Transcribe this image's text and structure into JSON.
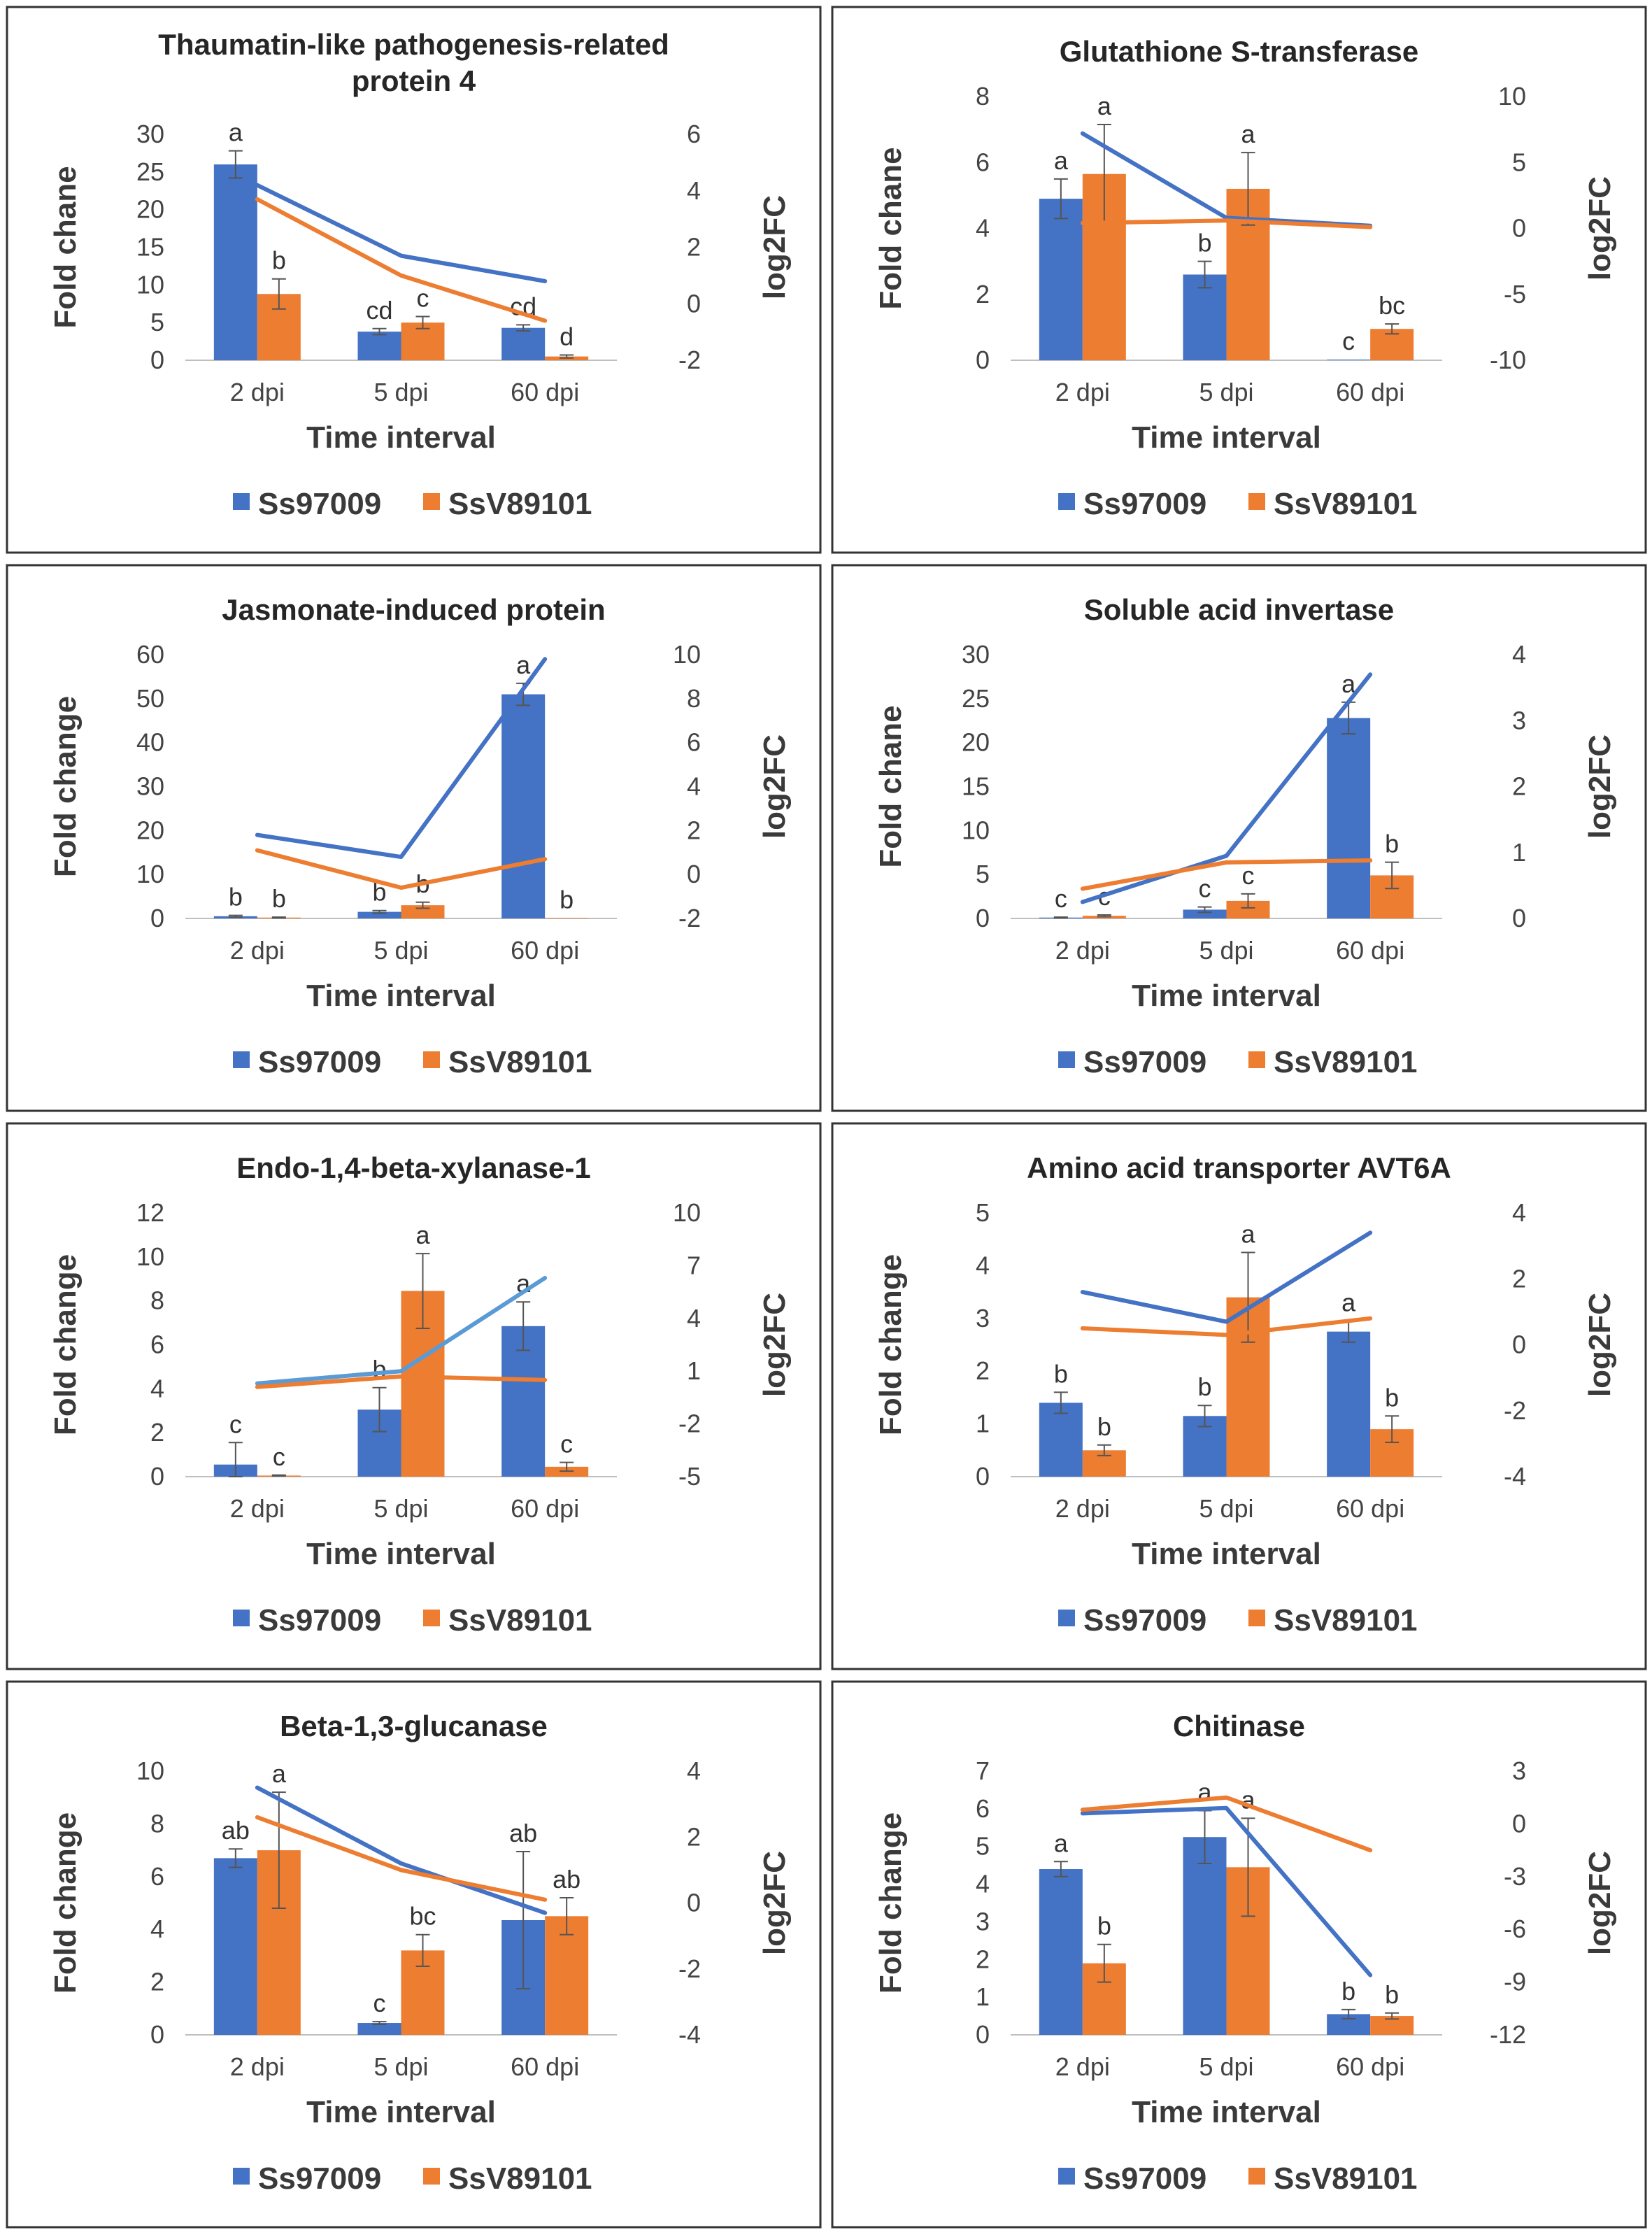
{
  "legend": [
    "Ss97009",
    "SsV89101"
  ],
  "colors": {
    "ss97009": "#4472C4",
    "ssv89101": "#ED7D31",
    "ss97009_line_alt": "#5B9BD5",
    "error_bar": "#555555",
    "axis": "#bfbfbf",
    "frame": "#333333"
  },
  "x_label": "Time interval",
  "y2_label": "log2FC",
  "chart_data": [
    {
      "type": "bar+line",
      "title": "Thaumatin-like pathogenesis-related protein 4",
      "title_lines": [
        "Thaumatin-like pathogenesis-related",
        "protein 4"
      ],
      "ylabel": "Fold chane",
      "y2label": "log2FC",
      "xlabel": "Time interval",
      "categories": [
        "2 dpi",
        "5 dpi",
        "60 dpi"
      ],
      "ylim": [
        0,
        30
      ],
      "yticks": [
        0,
        5,
        10,
        15,
        20,
        25,
        30
      ],
      "y2lim": [
        -2,
        6
      ],
      "y2ticks": [
        -2,
        0,
        2,
        4,
        6
      ],
      "bars": [
        {
          "name": "Ss97009",
          "values": [
            26,
            3.8,
            4.3
          ],
          "errors": [
            1.8,
            0.4,
            0.4
          ],
          "sig": [
            "a",
            "cd",
            "cd"
          ]
        },
        {
          "name": "SsV89101",
          "values": [
            8.8,
            5.0,
            0.5
          ],
          "errors": [
            2.0,
            0.8,
            0.2
          ],
          "sig": [
            "b",
            "c",
            "d"
          ]
        }
      ],
      "lines": [
        {
          "name": "Ss97009",
          "values": [
            4.2,
            1.7,
            0.8
          ]
        },
        {
          "name": "SsV89101",
          "values": [
            3.7,
            1.0,
            -0.6
          ]
        }
      ]
    },
    {
      "type": "bar+line",
      "title": "Glutathione S-transferase",
      "title_lines": [
        "Glutathione S-transferase"
      ],
      "ylabel": "Fold chane",
      "y2label": "log2FC",
      "xlabel": "Time interval",
      "categories": [
        "2 dpi",
        "5 dpi",
        "60 dpi"
      ],
      "ylim": [
        0,
        8
      ],
      "yticks": [
        0,
        2,
        4,
        6,
        8
      ],
      "y2lim": [
        -10,
        10
      ],
      "y2ticks": [
        -10,
        -5,
        0,
        5,
        10
      ],
      "bars": [
        {
          "name": "Ss97009",
          "values": [
            4.9,
            2.6,
            0.02
          ],
          "errors": [
            0.6,
            0.4,
            0.0
          ],
          "sig": [
            "a",
            "b",
            "c"
          ]
        },
        {
          "name": "SsV89101",
          "values": [
            5.65,
            5.2,
            0.95
          ],
          "errors": [
            1.5,
            1.1,
            0.15
          ],
          "sig": [
            "a",
            "a",
            "bc"
          ]
        }
      ],
      "lines": [
        {
          "name": "Ss97009",
          "values": [
            7.2,
            0.8,
            0.2
          ]
        },
        {
          "name": "SsV89101",
          "values": [
            0.4,
            0.6,
            0.1
          ]
        }
      ]
    },
    {
      "type": "bar+line",
      "title": "Jasmonate-induced protein",
      "title_lines": [
        "Jasmonate-induced protein"
      ],
      "ylabel": "Fold change",
      "y2label": "log2FC",
      "xlabel": "Time interval",
      "categories": [
        "2 dpi",
        "5 dpi",
        "60 dpi"
      ],
      "ylim": [
        0,
        60
      ],
      "yticks": [
        0,
        10,
        20,
        30,
        40,
        50,
        60
      ],
      "y2lim": [
        -2,
        10
      ],
      "y2ticks": [
        -2,
        0,
        2,
        4,
        6,
        8,
        10
      ],
      "bars": [
        {
          "name": "Ss97009",
          "values": [
            0.5,
            1.5,
            51
          ],
          "errors": [
            0.2,
            0.3,
            2.5
          ],
          "sig": [
            "b",
            "b",
            "a"
          ]
        },
        {
          "name": "SsV89101",
          "values": [
            0.2,
            3.0,
            0.1
          ],
          "errors": [
            0.1,
            0.7,
            0.0
          ],
          "sig": [
            "b",
            "b",
            "b"
          ]
        }
      ],
      "lines": [
        {
          "name": "Ss97009",
          "values": [
            1.8,
            0.8,
            9.8
          ]
        },
        {
          "name": "SsV89101",
          "values": [
            1.1,
            -0.6,
            0.7
          ]
        }
      ]
    },
    {
      "type": "bar+line",
      "title": "Soluble acid invertase",
      "title_lines": [
        "Soluble acid invertase"
      ],
      "ylabel": "Fold chane",
      "y2label": "log2FC",
      "xlabel": "Time interval",
      "categories": [
        "2 dpi",
        "5 dpi",
        "60 dpi"
      ],
      "ylim": [
        0,
        30
      ],
      "yticks": [
        0,
        5,
        10,
        15,
        20,
        25,
        30
      ],
      "y2lim": [
        0,
        4
      ],
      "y2ticks": [
        0,
        1,
        2,
        3,
        4
      ],
      "bars": [
        {
          "name": "Ss97009",
          "values": [
            0.1,
            1.0,
            22.8
          ],
          "errors": [
            0.05,
            0.3,
            1.8
          ],
          "sig": [
            "c",
            "c",
            "a"
          ]
        },
        {
          "name": "SsV89101",
          "values": [
            0.3,
            2.0,
            4.9
          ],
          "errors": [
            0.1,
            0.8,
            1.5
          ],
          "sig": [
            "c",
            "c",
            "b"
          ]
        }
      ],
      "lines": [
        {
          "name": "Ss97009",
          "values": [
            0.25,
            0.95,
            3.7
          ]
        },
        {
          "name": "SsV89101",
          "values": [
            0.45,
            0.85,
            0.88
          ]
        }
      ]
    },
    {
      "type": "bar+line",
      "title": "Endo-1,4-beta-xylanase-1",
      "title_lines": [
        "Endo-1,4-beta-xylanase-1"
      ],
      "ylabel": "Fold change",
      "y2label": "log2FC",
      "xlabel": "Time interval",
      "categories": [
        "2 dpi",
        "5 dpi",
        "60 dpi"
      ],
      "ylim": [
        0,
        12
      ],
      "yticks": [
        0,
        2,
        4,
        6,
        8,
        10,
        12
      ],
      "y2lim": [
        -5,
        10
      ],
      "y2ticks": [
        -5,
        -2,
        1,
        4,
        7,
        10
      ],
      "bars": [
        {
          "name": "Ss97009",
          "values": [
            0.55,
            3.05,
            6.85
          ],
          "errors": [
            1.0,
            1.0,
            1.1
          ],
          "sig": [
            "c",
            "b",
            "a"
          ]
        },
        {
          "name": "SsV89101",
          "values": [
            0.05,
            8.45,
            0.45
          ],
          "errors": [
            0.02,
            1.7,
            0.2
          ],
          "sig": [
            "c",
            "a",
            "c"
          ]
        }
      ],
      "lines": [
        {
          "name": "Ss97009",
          "values": [
            0.3,
            1.0,
            6.3
          ]
        },
        {
          "name": "SsV89101",
          "values": [
            0.1,
            0.7,
            0.5
          ]
        }
      ]
    },
    {
      "type": "bar+line",
      "title": "Amino acid transporter AVT6A",
      "title_lines": [
        "Amino acid transporter AVT6A"
      ],
      "ylabel": "Fold change",
      "y2label": "log2FC",
      "xlabel": "Time interval",
      "categories": [
        "2 dpi",
        "5 dpi",
        "60 dpi"
      ],
      "ylim": [
        0,
        5
      ],
      "yticks": [
        0,
        1,
        2,
        3,
        4,
        5
      ],
      "y2lim": [
        -4,
        4
      ],
      "y2ticks": [
        -4,
        -2,
        0,
        2,
        4
      ],
      "bars": [
        {
          "name": "Ss97009",
          "values": [
            1.4,
            1.15,
            2.75
          ],
          "errors": [
            0.2,
            0.2,
            0.2
          ],
          "sig": [
            "b",
            "b",
            "a"
          ]
        },
        {
          "name": "SsV89101",
          "values": [
            0.5,
            3.4,
            0.9
          ],
          "errors": [
            0.1,
            0.85,
            0.25
          ],
          "sig": [
            "b",
            "a",
            "b"
          ]
        }
      ],
      "lines": [
        {
          "name": "Ss97009",
          "values": [
            1.6,
            0.7,
            3.4
          ]
        },
        {
          "name": "SsV89101",
          "values": [
            0.5,
            0.3,
            0.8
          ]
        }
      ]
    },
    {
      "type": "bar+line",
      "title": "Beta-1,3-glucanase",
      "title_lines": [
        "Beta-1,3-glucanase"
      ],
      "ylabel": "Fold change",
      "y2label": "log2FC",
      "xlabel": "Time interval",
      "categories": [
        "2 dpi",
        "5 dpi",
        "60 dpi"
      ],
      "ylim": [
        0,
        10
      ],
      "yticks": [
        0,
        2,
        4,
        6,
        8,
        10
      ],
      "y2lim": [
        -4,
        4
      ],
      "y2ticks": [
        -4,
        -2,
        0,
        2,
        4
      ],
      "bars": [
        {
          "name": "Ss97009",
          "values": [
            6.7,
            0.45,
            4.35
          ],
          "errors": [
            0.35,
            0.05,
            2.6
          ],
          "sig": [
            "ab",
            "c",
            "ab"
          ]
        },
        {
          "name": "SsV89101",
          "values": [
            7.0,
            3.2,
            4.5
          ],
          "errors": [
            2.2,
            0.6,
            0.7
          ],
          "sig": [
            "a",
            "bc",
            "ab"
          ]
        }
      ],
      "lines": [
        {
          "name": "Ss97009",
          "values": [
            3.5,
            1.2,
            -0.3
          ]
        },
        {
          "name": "SsV89101",
          "values": [
            2.6,
            1.0,
            0.1
          ]
        }
      ]
    },
    {
      "type": "bar+line",
      "title": "Chitinase",
      "title_lines": [
        "Chitinase"
      ],
      "ylabel": "Fold change",
      "y2label": "log2FC",
      "xlabel": "Time interval",
      "categories": [
        "2 dpi",
        "5 dpi",
        "60 dpi"
      ],
      "ylim": [
        0,
        7
      ],
      "yticks": [
        0,
        1,
        2,
        3,
        4,
        5,
        6,
        7
      ],
      "y2lim": [
        -12,
        3
      ],
      "y2ticks": [
        -12,
        -9,
        -6,
        -3,
        0,
        3
      ],
      "bars": [
        {
          "name": "Ss97009",
          "values": [
            4.4,
            5.25,
            0.55
          ],
          "errors": [
            0.2,
            0.7,
            0.12
          ],
          "sig": [
            "a",
            "a",
            "b"
          ]
        },
        {
          "name": "SsV89101",
          "values": [
            1.9,
            4.45,
            0.5
          ],
          "errors": [
            0.5,
            1.3,
            0.08
          ],
          "sig": [
            "b",
            "a",
            "b"
          ]
        }
      ],
      "lines": [
        {
          "name": "Ss97009",
          "values": [
            0.6,
            0.9,
            -8.6
          ]
        },
        {
          "name": "SsV89101",
          "values": [
            0.8,
            1.5,
            -1.5
          ]
        }
      ]
    }
  ]
}
